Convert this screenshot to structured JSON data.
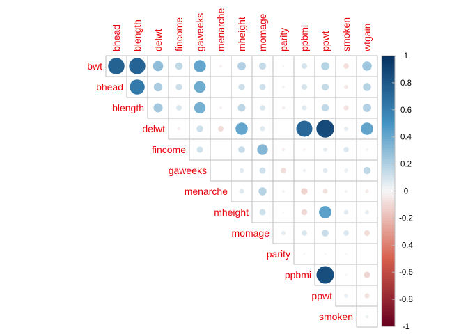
{
  "chart_data": {
    "type": "heatmap",
    "subtype": "upper-triangular correlation matrix (circle glyphs)",
    "row_labels": [
      "bwt",
      "bhead",
      "blength",
      "delwt",
      "fincome",
      "gaweeks",
      "menarche",
      "mheight",
      "momage",
      "parity",
      "ppbmi",
      "ppwt",
      "smoken"
    ],
    "col_labels": [
      "bhead",
      "blength",
      "delwt",
      "fincome",
      "gaweeks",
      "menarche",
      "mheight",
      "momage",
      "parity",
      "ppbmi",
      "ppwt",
      "smoken",
      "wtgain"
    ],
    "values": [
      [
        0.75,
        0.74,
        0.29,
        0.15,
        0.41,
        -0.02,
        0.19,
        0.14,
        -0.01,
        0.09,
        0.18,
        -0.08,
        0.25
      ],
      [
        null,
        0.63,
        0.21,
        0.12,
        0.38,
        0.0,
        0.12,
        0.11,
        -0.02,
        0.09,
        0.14,
        -0.05,
        0.18
      ],
      [
        null,
        null,
        0.23,
        0.08,
        0.36,
        -0.02,
        0.16,
        0.08,
        -0.03,
        0.07,
        0.15,
        -0.07,
        0.19
      ],
      [
        null,
        null,
        null,
        -0.03,
        0.12,
        -0.09,
        0.41,
        0.07,
        -0.0,
        0.72,
        0.87,
        0.05,
        0.42
      ],
      [
        null,
        null,
        null,
        null,
        0.11,
        -0.0,
        0.13,
        0.32,
        -0.03,
        -0.02,
        0.05,
        0.08,
        -0.02
      ],
      [
        null,
        null,
        null,
        null,
        null,
        -0.0,
        0.06,
        0.11,
        -0.08,
        0.03,
        0.06,
        0.04,
        0.15
      ],
      [
        null,
        null,
        null,
        null,
        null,
        null,
        0.07,
        0.18,
        0.02,
        -0.12,
        -0.07,
        0.02,
        -0.04
      ],
      [
        null,
        null,
        null,
        null,
        null,
        null,
        null,
        0.11,
        -0.01,
        -0.1,
        0.43,
        0.06,
        0.05
      ],
      [
        null,
        null,
        null,
        null,
        null,
        null,
        null,
        null,
        0.05,
        0.08,
        0.13,
        0.08,
        -0.09
      ],
      [
        null,
        null,
        null,
        null,
        null,
        null,
        null,
        null,
        null,
        -0.01,
        -0.01,
        -0.01,
        0.0
      ],
      [
        null,
        null,
        null,
        null,
        null,
        null,
        null,
        null,
        null,
        null,
        0.85,
        0.01,
        -0.11
      ],
      [
        null,
        null,
        null,
        null,
        null,
        null,
        null,
        null,
        null,
        null,
        null,
        0.04,
        -0.07
      ],
      [
        null,
        null,
        null,
        null,
        null,
        null,
        null,
        null,
        null,
        null,
        null,
        null,
        0.03
      ]
    ],
    "colorbar": {
      "range": [
        -1,
        1
      ],
      "ticks": [
        1,
        0.8,
        0.6,
        0.4,
        0.2,
        0,
        -0.2,
        -0.4,
        -0.6,
        -0.8,
        -1
      ],
      "tick_labels": [
        "1",
        "0.8",
        "0.6",
        "0.4",
        "0.2",
        "0",
        "-0.2",
        "-0.4",
        "-0.6",
        "-0.8",
        "-1"
      ]
    },
    "label_color": "#E8000B",
    "palette": {
      "negative_end": "#67001F",
      "negative_mid": "#D6604D",
      "neutral": "#F7F7F7",
      "positive_mid": "#4393C3",
      "positive_end": "#053061"
    },
    "grid": true,
    "legend": "colorbar-right"
  }
}
